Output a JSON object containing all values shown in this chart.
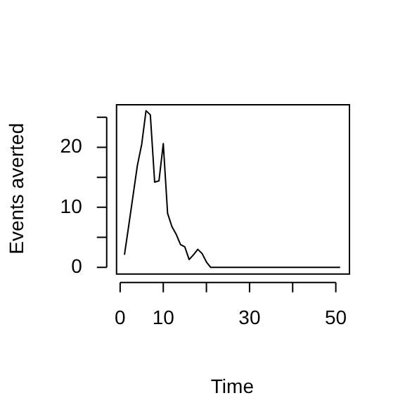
{
  "chart_data": {
    "type": "line",
    "xlabel": "Time",
    "ylabel": "Events averted",
    "x": [
      1,
      2,
      3,
      4,
      5,
      6,
      7,
      8,
      9,
      10,
      11,
      12,
      13,
      14,
      15,
      16,
      17,
      18,
      19,
      20,
      21,
      51
    ],
    "series": [
      {
        "color": "#000000",
        "values": [
          2.1,
          7,
          12,
          17,
          20.5,
          26.1,
          25.4,
          14.2,
          14.4,
          20.6,
          9,
          6.8,
          5.5,
          3.8,
          3.4,
          1.3,
          2.1,
          3,
          2.3,
          0.9,
          0,
          0
        ]
      }
    ],
    "xlim": [
      -1,
      53
    ],
    "ylim": [
      -1,
      27.2
    ],
    "xticks": [
      0,
      10,
      {
        "value": 20,
        "label": null
      },
      30,
      {
        "value": 40,
        "label": null
      },
      50
    ],
    "yticks": [
      0,
      {
        "value": 5,
        "label": null
      },
      10,
      {
        "value": 15,
        "label": null
      },
      20,
      {
        "value": 25,
        "label": null
      }
    ],
    "grid": false,
    "legend": false,
    "marker": "none",
    "line_style": "solid"
  }
}
